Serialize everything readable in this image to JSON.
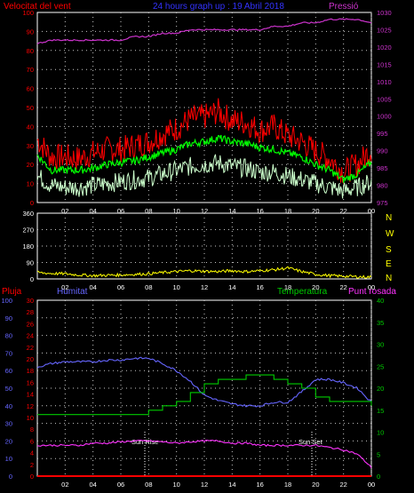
{
  "header": {
    "left": "Velocitat del vent",
    "center": "24 hours graph up : 19 Abril 2018",
    "right": "Pressió"
  },
  "colors": {
    "wind_gust": "#ff0000",
    "wind_avg": "#00ff00",
    "wind_min": "#ccffcc",
    "pressure": "#cc33cc",
    "direction": "#ffff00",
    "humidity": "#6666ff",
    "temperature": "#00cc00",
    "dewpoint": "#ff33ff",
    "rain": "#ff0000",
    "grid": "#c8c8c8"
  },
  "x_ticks": [
    "02",
    "04",
    "06",
    "08",
    "10",
    "12",
    "14",
    "16",
    "18",
    "20",
    "22",
    "00"
  ],
  "chart_data": [
    {
      "type": "line",
      "title": "24 hours graph up : 19 Abril 2018",
      "x_hours": [
        0,
        1,
        2,
        3,
        4,
        5,
        6,
        7,
        8,
        9,
        10,
        11,
        12,
        13,
        14,
        15,
        16,
        17,
        18,
        19,
        20,
        21,
        22,
        23,
        24
      ],
      "y_left": {
        "label": "Velocitat del vent",
        "ticks": [
          0,
          10,
          20,
          30,
          40,
          50,
          60,
          70,
          80,
          90,
          100
        ],
        "range": [
          0,
          100
        ]
      },
      "y_right": {
        "label": "Pressió",
        "ticks": [
          975,
          980,
          985,
          990,
          995,
          1000,
          1005,
          1010,
          1015,
          1020,
          1025,
          1030
        ],
        "range": [
          975,
          1030
        ]
      },
      "series": [
        {
          "name": "Pressió",
          "axis": "right",
          "values": [
            1021,
            1022,
            1022,
            1022,
            1022,
            1022,
            1022,
            1023,
            1023,
            1024,
            1024,
            1025,
            1025,
            1025,
            1025,
            1025,
            1025,
            1026,
            1026,
            1027,
            1027,
            1028,
            1028,
            1028,
            1027
          ]
        },
        {
          "name": "gust",
          "axis": "left",
          "values": [
            33,
            24,
            24,
            23,
            26,
            28,
            28,
            30,
            32,
            36,
            39,
            44,
            45,
            48,
            43,
            42,
            38,
            40,
            35,
            32,
            27,
            23,
            16,
            20,
            28
          ]
        },
        {
          "name": "avg",
          "axis": "left",
          "values": [
            25,
            17,
            17,
            17,
            18,
            20,
            21,
            22,
            24,
            26,
            28,
            31,
            32,
            34,
            32,
            31,
            29,
            28,
            26,
            24,
            20,
            17,
            12,
            15,
            21
          ]
        },
        {
          "name": "min",
          "axis": "left",
          "values": [
            14,
            9,
            8,
            8,
            9,
            10,
            11,
            12,
            13,
            15,
            17,
            19,
            20,
            21,
            19,
            18,
            16,
            16,
            14,
            12,
            10,
            8,
            6,
            8,
            11
          ]
        }
      ]
    },
    {
      "type": "line",
      "y_left": {
        "ticks": [
          0,
          90,
          180,
          270,
          360
        ],
        "range": [
          0,
          360
        ]
      },
      "y_right": {
        "ticks": [
          "N",
          "W",
          "S",
          "E",
          "N"
        ]
      },
      "series": [
        {
          "name": "direction",
          "values": [
            35,
            30,
            28,
            22,
            18,
            20,
            22,
            25,
            28,
            35,
            40,
            45,
            42,
            40,
            45,
            40,
            45,
            50,
            60,
            40,
            25,
            18,
            15,
            12,
            10
          ]
        }
      ]
    },
    {
      "type": "line",
      "legend": [
        "Pluja",
        "Humitat",
        "Temperatura",
        "Punt rosada"
      ],
      "y_rain": {
        "label": "Pluja",
        "ticks": [
          0,
          10,
          20,
          30,
          40,
          50,
          60,
          70,
          80,
          90,
          100
        ],
        "range": [
          0,
          100
        ]
      },
      "y_humidity": {
        "label": "Humitat",
        "ticks": [
          0,
          2,
          4,
          6,
          8,
          10,
          12,
          14,
          16,
          18,
          20,
          22,
          24,
          26,
          28,
          30
        ],
        "range": [
          0,
          30
        ]
      },
      "y_temp": {
        "label": "Temperatura",
        "ticks": [
          0,
          5,
          10,
          15,
          20,
          25,
          30,
          35,
          40
        ],
        "range": [
          0,
          40
        ]
      },
      "annotations": [
        "Sun Rise",
        "Sun Set"
      ],
      "series": [
        {
          "name": "Humitat",
          "axis": "rain",
          "values": [
            62,
            64,
            65,
            65,
            65,
            66,
            66,
            67,
            67,
            64,
            60,
            54,
            46,
            43,
            41,
            40,
            40,
            42,
            42,
            48,
            55,
            55,
            53,
            50,
            42
          ]
        },
        {
          "name": "Temperatura",
          "axis": "temp",
          "values": [
            14,
            14,
            14,
            14,
            14,
            14,
            14,
            14,
            15,
            16,
            17,
            19,
            21,
            22,
            22,
            23,
            23,
            22,
            21,
            20,
            18,
            17,
            17,
            17,
            16
          ]
        },
        {
          "name": "Punt rosada",
          "axis": "temp",
          "values": [
            7,
            7,
            7,
            7,
            7.5,
            7.5,
            7.8,
            8,
            8,
            7.8,
            7.5,
            7.8,
            8,
            8,
            7.5,
            7.5,
            7,
            7,
            7,
            7,
            7,
            6.5,
            6,
            5,
            2
          ]
        },
        {
          "name": "Pluja",
          "axis": "rain",
          "values": [
            0,
            0,
            0,
            0,
            0,
            0,
            0,
            0,
            0,
            0,
            0,
            0,
            0,
            0,
            0,
            0,
            0,
            0,
            0,
            0,
            0,
            0,
            0,
            0,
            0
          ]
        }
      ]
    }
  ]
}
